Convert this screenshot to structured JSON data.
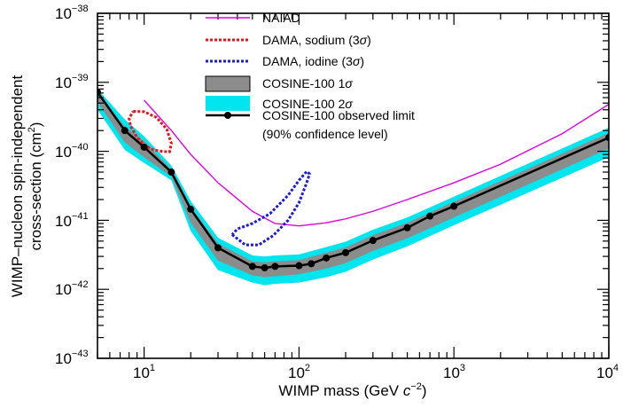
{
  "chart_data": {
    "type": "line",
    "xscale": "log",
    "yscale": "log",
    "xlim": [
      5,
      10000
    ],
    "ylim": [
      1e-43,
      1e-38
    ],
    "xlabel": {
      "base": "WIMP mass (GeV ",
      "italic": "c",
      "exp": "−2",
      "close": ")"
    },
    "ylabel": {
      "line1": "WIMP–nucleon spin-independent",
      "line2_base": "cross-section (cm",
      "line2_exp": "2",
      "line2_close": ")"
    },
    "x_ticks": [
      {
        "value": 10,
        "base": "10",
        "exp": "1"
      },
      {
        "value": 100,
        "base": "10",
        "exp": "2"
      },
      {
        "value": 1000,
        "base": "10",
        "exp": "3"
      },
      {
        "value": 10000,
        "base": "10",
        "exp": "4"
      }
    ],
    "y_ticks": [
      {
        "value": 1e-38,
        "base": "10",
        "exp": "−38"
      },
      {
        "value": 1e-39,
        "base": "10",
        "exp": "−39"
      },
      {
        "value": 1e-40,
        "base": "10",
        "exp": "−40"
      },
      {
        "value": 1e-41,
        "base": "10",
        "exp": "−41"
      },
      {
        "value": 1e-42,
        "base": "10",
        "exp": "−42"
      },
      {
        "value": 1e-43,
        "base": "10",
        "exp": "−43"
      }
    ],
    "legend": {
      "placement": "top-center",
      "entries": [
        {
          "key": "naiad",
          "label": "NAIAD",
          "style": "line",
          "color": "#e100e1"
        },
        {
          "key": "dama_na",
          "label_prefix": "DAMA, sodium (3",
          "label_greek": "σ",
          "label_suffix": ")",
          "style": "dotted",
          "color": "#e8141b"
        },
        {
          "key": "dama_i",
          "label_prefix": "DAMA, iodine (3",
          "label_greek": "σ",
          "label_suffix": ")",
          "style": "dotted",
          "color": "#1a1adc"
        },
        {
          "key": "band1",
          "label_prefix": "COSINE-100 1",
          "label_greek": "σ",
          "label_suffix": "",
          "style": "box",
          "color": "#8c8c8c"
        },
        {
          "key": "band2",
          "label_prefix": "COSINE-100 2",
          "label_greek": "σ",
          "label_suffix": "",
          "style": "box",
          "color": "#00e5ee"
        },
        {
          "key": "observed",
          "label": "COSINE-100 observed limit",
          "label2": "(90% confidence level)",
          "style": "line-marker",
          "color": "#000000"
        }
      ]
    },
    "series": [
      {
        "name": "COSINE-100 observed limit",
        "color": "#000000",
        "points": [
          [
            5.0,
            7.2e-40
          ],
          [
            7.5,
            2e-40
          ],
          [
            10,
            1.15e-40
          ],
          [
            15,
            5e-41
          ],
          [
            20,
            1.45e-41
          ],
          [
            30,
            4e-42
          ],
          [
            50,
            2.15e-42
          ],
          [
            60,
            2.05e-42
          ],
          [
            70,
            2.15e-42
          ],
          [
            100,
            2.2e-42
          ],
          [
            120,
            2.35e-42
          ],
          [
            150,
            2.85e-42
          ],
          [
            200,
            3.4e-42
          ],
          [
            300,
            5.1e-42
          ],
          [
            500,
            7.8e-42
          ],
          [
            700,
            1.15e-41
          ],
          [
            1000,
            1.6e-41
          ],
          [
            10000,
            1.58e-40
          ]
        ]
      },
      {
        "name": "NAIAD",
        "color": "#e100e1",
        "points": [
          [
            10,
            5.5e-40
          ],
          [
            15,
            2e-40
          ],
          [
            20,
            9e-41
          ],
          [
            30,
            3.5e-41
          ],
          [
            50,
            1.35e-41
          ],
          [
            70,
            9e-42
          ],
          [
            100,
            8.3e-42
          ],
          [
            150,
            9.2e-42
          ],
          [
            200,
            1.05e-41
          ],
          [
            300,
            1.35e-41
          ],
          [
            500,
            2e-41
          ],
          [
            1000,
            3.5e-41
          ],
          [
            2000,
            6.5e-41
          ],
          [
            5000,
            1.8e-40
          ],
          [
            10000,
            4.8e-40
          ]
        ]
      }
    ],
    "bands": [
      {
        "name": "COSINE-100 2σ",
        "color": "#00e5ee",
        "x": [
          5,
          7.5,
          10,
          15,
          20,
          30,
          50,
          60,
          70,
          100,
          150,
          200,
          300,
          500,
          1000,
          10000
        ],
        "upper": [
          8e-40,
          2.9e-40,
          1.65e-40,
          6.2e-41,
          1.9e-41,
          5.6e-42,
          3.1e-42,
          3e-42,
          3.1e-42,
          3.2e-42,
          4.1e-42,
          4.9e-42,
          7.3e-42,
          1.1e-41,
          2.2e-41,
          2.2e-40
        ],
        "lower": [
          4e-40,
          1.05e-40,
          6.8e-41,
          3.8e-41,
          7e-42,
          1.9e-42,
          1.25e-42,
          1.15e-42,
          1.2e-42,
          1.25e-42,
          1.5e-42,
          1.8e-42,
          2.7e-42,
          4.2e-42,
          8.5e-42,
          8.2e-41
        ]
      },
      {
        "name": "COSINE-100 1σ",
        "color": "#8c8c8c",
        "x": [
          5,
          7.5,
          10,
          15,
          20,
          30,
          50,
          60,
          70,
          100,
          150,
          200,
          300,
          500,
          1000,
          10000
        ],
        "upper": [
          6.6e-40,
          2.3e-40,
          1.4e-40,
          5.4e-41,
          1.55e-41,
          4.6e-42,
          2.55e-42,
          2.45e-42,
          2.55e-42,
          2.65e-42,
          3.4e-42,
          4.05e-42,
          6.1e-42,
          9.2e-42,
          1.85e-41,
          1.85e-40
        ],
        "lower": [
          5.2e-40,
          1.35e-40,
          8.2e-41,
          4.3e-41,
          9.2e-42,
          2.6e-42,
          1.6e-42,
          1.5e-42,
          1.55e-42,
          1.65e-42,
          2e-42,
          2.4e-42,
          3.6e-42,
          5.5e-42,
          1.1e-41,
          1.1e-40
        ]
      }
    ],
    "contours": [
      {
        "name": "DAMA, sodium (3σ)",
        "color": "#e8141b",
        "points": [
          [
            8.5,
            3.8e-40
          ],
          [
            10,
            3.75e-40
          ],
          [
            12,
            3.1e-40
          ],
          [
            14,
            2.1e-40
          ],
          [
            15,
            1.3e-40
          ],
          [
            14.6,
            9.8e-41
          ],
          [
            13,
            1e-40
          ],
          [
            11.5,
            1.05e-40
          ],
          [
            10.2,
            1.2e-40
          ],
          [
            9,
            1.6e-40
          ],
          [
            8.2,
            2.3e-40
          ],
          [
            8.0,
            3e-40
          ],
          [
            8.5,
            3.8e-40
          ]
        ]
      },
      {
        "name": "DAMA, iodine (3σ)",
        "color": "#1a1adc",
        "points": [
          [
            37,
            6.2e-42
          ],
          [
            45,
            4.4e-42
          ],
          [
            55,
            4.4e-42
          ],
          [
            68,
            6e-42
          ],
          [
            85,
            1e-41
          ],
          [
            100,
            1.8e-41
          ],
          [
            112,
            3.5e-41
          ],
          [
            117,
            4.7e-41
          ],
          [
            112,
            5.1e-41
          ],
          [
            100,
            3.8e-41
          ],
          [
            85,
            2.3e-41
          ],
          [
            65,
            1.25e-41
          ],
          [
            50,
            9e-42
          ],
          [
            40,
            7.5e-42
          ],
          [
            37,
            6.2e-42
          ]
        ]
      }
    ]
  }
}
